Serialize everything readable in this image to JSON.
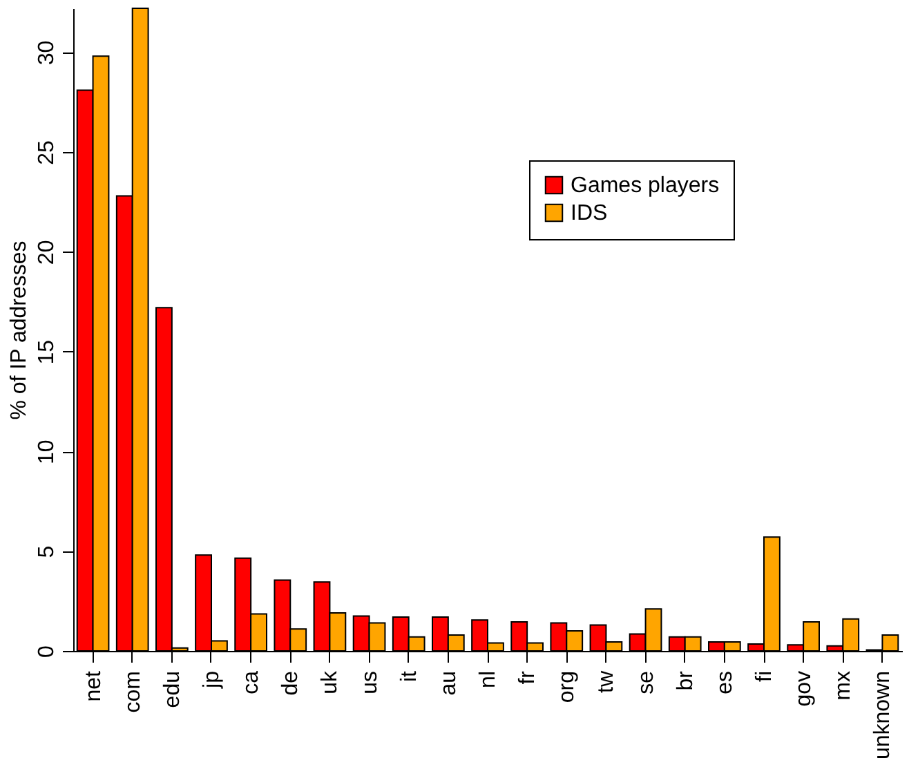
{
  "chart_data": {
    "type": "bar",
    "ylabel": "% of IP addresses",
    "categories": [
      "net",
      "com",
      "edu",
      "jp",
      "ca",
      "de",
      "uk",
      "us",
      "it",
      "au",
      "nl",
      "fr",
      "org",
      "tw",
      "se",
      "br",
      "es",
      "fi",
      "gov",
      "mx",
      "unknown"
    ],
    "series": [
      {
        "name": "Games players",
        "color": "#ff0000",
        "values": [
          28.1,
          22.8,
          17.2,
          4.8,
          4.65,
          3.55,
          3.45,
          1.75,
          1.7,
          1.7,
          1.55,
          1.45,
          1.4,
          1.3,
          0.85,
          0.7,
          0.45,
          0.35,
          0.3,
          0.25,
          0.05
        ]
      },
      {
        "name": "IDS",
        "color": "#ffa500",
        "values": [
          29.8,
          32.2,
          0.15,
          0.5,
          1.85,
          1.1,
          1.9,
          1.4,
          0.7,
          0.8,
          0.4,
          0.4,
          1.0,
          0.45,
          2.1,
          0.7,
          0.45,
          5.7,
          1.45,
          1.6,
          0.8
        ]
      }
    ],
    "ylim": [
      0,
      32.2
    ],
    "yticks": [
      0,
      5,
      10,
      15,
      20,
      25,
      30
    ],
    "grid": false,
    "legend": "right"
  }
}
